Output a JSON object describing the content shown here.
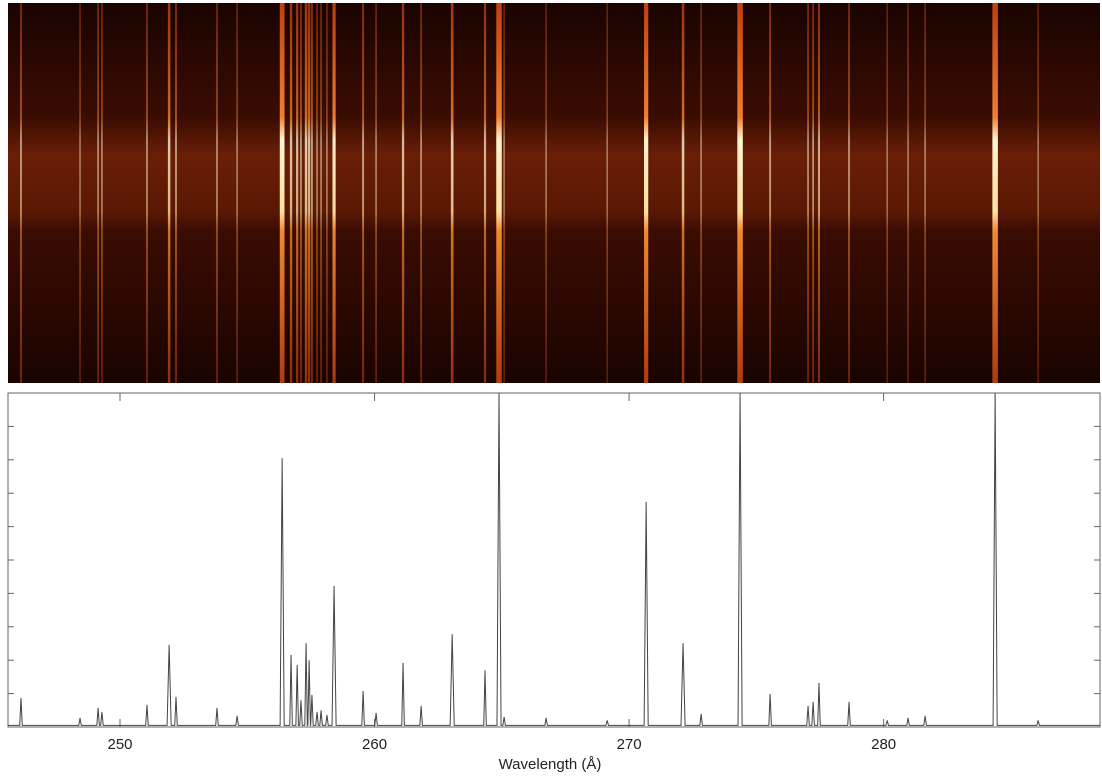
{
  "chart_data": {
    "type": "line",
    "x_label": "Wavelength (Å)",
    "x": [
      245.6,
      246.06,
      246.11,
      246.16,
      248.38,
      248.43,
      248.48,
      249.09,
      249.14,
      249.19,
      249.24,
      249.29,
      249.34,
      251.01,
      251.06,
      251.11,
      251.85,
      251.93,
      252.01,
      252.15,
      252.2,
      252.25,
      253.76,
      253.81,
      253.86,
      254.55,
      254.6,
      254.65,
      256.29,
      256.37,
      256.45,
      256.67,
      256.72,
      256.77,
      256.91,
      256.96,
      257.01,
      257.06,
      257.11,
      257.16,
      257.26,
      257.31,
      257.36,
      257.38,
      257.43,
      257.48,
      257.49,
      257.54,
      257.59,
      257.69,
      257.74,
      257.79,
      257.85,
      257.9,
      257.95,
      258.08,
      258.13,
      258.18,
      258.33,
      258.41,
      258.49,
      259.5,
      259.55,
      259.6,
      260.01,
      260.06,
      260.11,
      261.07,
      261.12,
      261.17,
      261.78,
      261.83,
      261.88,
      262.97,
      263.05,
      263.13,
      264.29,
      264.34,
      264.39,
      264.81,
      264.89,
      264.97,
      265.04,
      265.09,
      265.14,
      266.69,
      266.74,
      266.79,
      269.09,
      269.14,
      269.19,
      270.59,
      270.67,
      270.75,
      272.04,
      272.12,
      272.2,
      272.78,
      272.83,
      272.88,
      274.28,
      274.36,
      274.44,
      275.49,
      275.54,
      275.59,
      276.98,
      277.03,
      277.08,
      277.18,
      277.23,
      277.28,
      277.41,
      277.46,
      277.51,
      278.59,
      278.64,
      278.69,
      280.09,
      280.14,
      280.19,
      280.91,
      280.96,
      281.01,
      281.58,
      281.63,
      281.68,
      284.3,
      284.38,
      284.46,
      286.02,
      286.07,
      286.12,
      288.5
    ],
    "values": [
      0.5,
      0.5,
      8.7,
      0.5,
      0.5,
      2.7,
      0.5,
      0.5,
      5.7,
      0.5,
      0.5,
      4.5,
      0.5,
      0.5,
      6.6,
      0.5,
      0.5,
      24.6,
      0.5,
      0.5,
      9.0,
      0.5,
      0.5,
      5.7,
      0.5,
      0.5,
      3.3,
      0.5,
      0.5,
      80.5,
      0.5,
      0.5,
      21.6,
      0.5,
      0.5,
      18.6,
      0.5,
      0.5,
      8.0,
      0.5,
      0.5,
      25.1,
      0.5,
      0.5,
      20.0,
      0.5,
      0.5,
      9.6,
      0.5,
      0.5,
      4.5,
      0.5,
      0.5,
      5.0,
      0.5,
      0.5,
      3.6,
      0.5,
      0.5,
      42.2,
      0.5,
      0.5,
      10.8,
      0.5,
      0.5,
      4.2,
      0.5,
      0.5,
      19.2,
      0.5,
      0.5,
      6.3,
      0.5,
      0.5,
      27.8,
      0.5,
      0.5,
      17.0,
      0.5,
      0.5,
      100,
      0.5,
      0.5,
      3.0,
      0.5,
      0.5,
      2.7,
      0.5,
      0.5,
      2.0,
      0.5,
      0.5,
      67.4,
      0.5,
      0.5,
      25.1,
      0.5,
      0.5,
      3.9,
      0.5,
      0.5,
      100,
      0.5,
      0.5,
      9.9,
      0.5,
      0.5,
      6.3,
      0.5,
      0.5,
      7.5,
      0.5,
      0.5,
      13.2,
      0.5,
      0.5,
      7.5,
      0.5,
      0.5,
      2.0,
      0.5,
      0.5,
      2.7,
      0.5,
      0.5,
      3.3,
      0.5,
      0.5,
      100,
      0.5,
      0.5,
      2.0,
      0.5,
      0.5
    ],
    "color": "#444444",
    "xlim": [
      245.6,
      288.5
    ],
    "xticks": [
      250,
      260,
      270,
      280
    ],
    "ylim": [
      0,
      100
    ],
    "yticks": [
      0,
      10,
      20,
      30,
      40,
      50,
      60,
      70,
      80,
      90,
      100
    ]
  }
}
